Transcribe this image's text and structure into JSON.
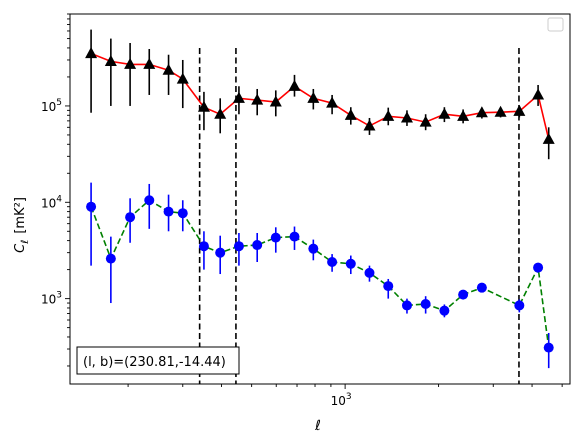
{
  "chart_data": {
    "type": "scatter",
    "title": "",
    "xlabel": "ℓ",
    "ylabel_main": "C",
    "ylabel_sub": "ℓ",
    "ylabel_unit": "[mK²]",
    "xscale": "log",
    "yscale": "log",
    "xlim": [
      130,
      5300
    ],
    "ylim": [
      130,
      900000
    ],
    "x_ticks": [
      {
        "value": 1000,
        "base": "10",
        "exp": "3"
      }
    ],
    "y_ticks": [
      {
        "value": 1000,
        "base": "10",
        "exp": "3"
      },
      {
        "value": 10000,
        "base": "10",
        "exp": "4"
      },
      {
        "value": 100000,
        "base": "10",
        "exp": "5"
      }
    ],
    "vlines": [
      340,
      445,
      3630
    ],
    "legend": "top-right",
    "annotation": "(l, b)=(230.81,-14.44)",
    "colors": {
      "upper_line": "#ff0000",
      "upper_marker": "#000000",
      "lower_line": "#008000",
      "lower_marker": "#0000ff",
      "vline": "#000000"
    },
    "x": [
      152,
      176,
      203,
      234,
      270,
      300,
      351,
      396,
      455,
      521,
      598,
      687,
      790,
      908,
      1043,
      1198,
      1377,
      1582,
      1817,
      2088,
      2399,
      2757,
      3167,
      3640,
      4183,
      4526
    ],
    "series": [
      {
        "key": "upper",
        "marker": "triangle",
        "linestyle": "solid",
        "y": [
          350000,
          290000,
          270000,
          270000,
          235000,
          190000,
          97000,
          82000,
          120000,
          115000,
          110000,
          160000,
          120000,
          107000,
          80000,
          62000,
          78000,
          75000,
          68000,
          82000,
          78000,
          85000,
          86000,
          88000,
          130000,
          45000
        ],
        "ylow": [
          85000,
          100000,
          100000,
          130000,
          130000,
          95000,
          56000,
          52000,
          82000,
          80000,
          78000,
          125000,
          92000,
          82000,
          64000,
          50000,
          63000,
          62000,
          56000,
          68000,
          66000,
          74000,
          76000,
          76000,
          100000,
          28000
        ],
        "yhigh": [
          620000,
          500000,
          450000,
          390000,
          340000,
          300000,
          140000,
          120000,
          160000,
          150000,
          145000,
          210000,
          150000,
          130000,
          97000,
          75000,
          96000,
          90000,
          82000,
          97000,
          92000,
          96000,
          96000,
          100000,
          165000,
          60000
        ]
      },
      {
        "key": "lower",
        "marker": "circle",
        "linestyle": "dashed",
        "y": [
          9000,
          2600,
          7000,
          10500,
          8000,
          7700,
          3500,
          3000,
          3500,
          3600,
          4300,
          4400,
          3300,
          2400,
          2300,
          1850,
          1350,
          850,
          880,
          750,
          1100,
          1300,
          850,
          2100,
          310
        ],
        "ylow": [
          2200,
          900,
          3800,
          5300,
          5000,
          5000,
          2000,
          1800,
          2200,
          2400,
          3000,
          3200,
          2500,
          1900,
          1800,
          1500,
          1000,
          700,
          700,
          640,
          980,
          1180,
          720,
          1850,
          190
        ],
        "yhigh": [
          16000,
          4400,
          11000,
          15500,
          12000,
          10500,
          5000,
          4500,
          4800,
          4800,
          5500,
          5600,
          4100,
          2900,
          2800,
          2200,
          1600,
          1000,
          1060,
          870,
          1220,
          1420,
          980,
          2350,
          440
        ],
        "x_index": [
          0,
          1,
          2,
          3,
          4,
          5,
          6,
          7,
          8,
          9,
          10,
          11,
          12,
          13,
          14,
          15,
          16,
          17,
          18,
          19,
          20,
          21,
          23,
          24,
          25
        ]
      }
    ]
  }
}
